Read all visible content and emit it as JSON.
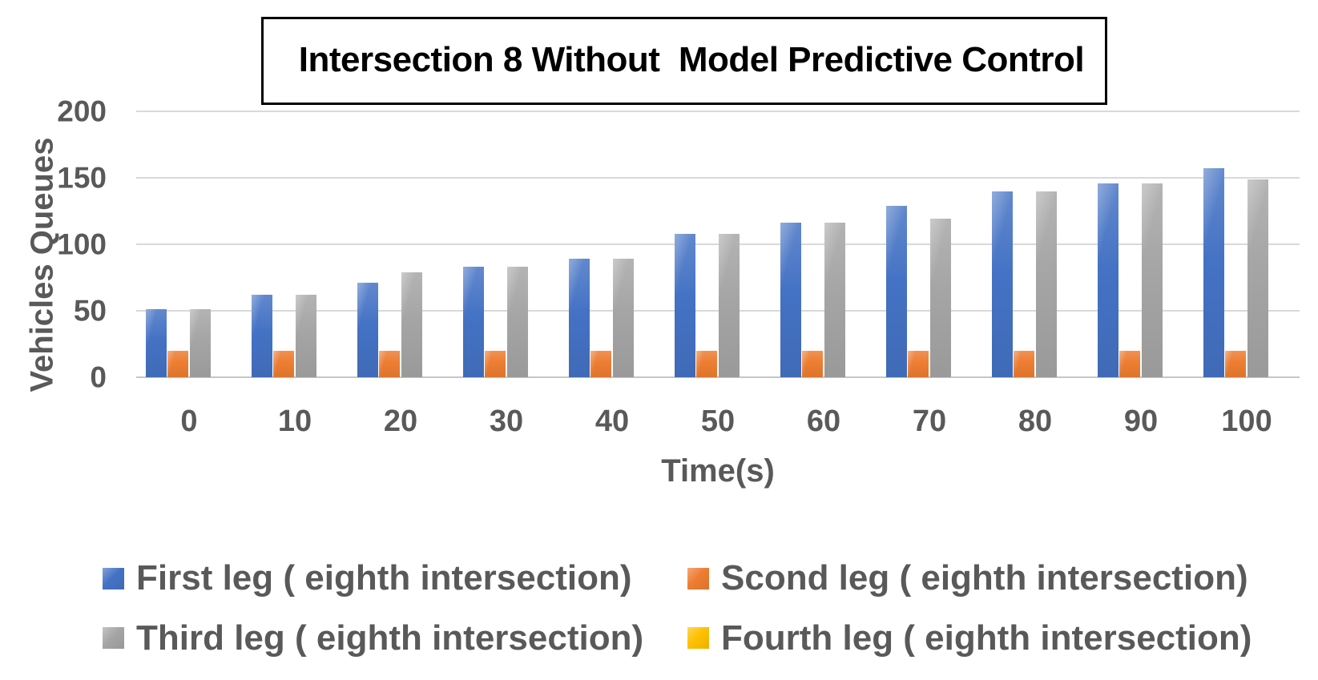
{
  "title": "Intersection 8 Without  Model Predictive Control",
  "chart_data": {
    "type": "bar",
    "title": "Intersection 8 Without  Model Predictive Control",
    "xlabel": "Time(s)",
    "ylabel": "Vehicles Queues",
    "categories": [
      "0",
      "10",
      "20",
      "30",
      "40",
      "50",
      "60",
      "70",
      "80",
      "90",
      "100"
    ],
    "ylim": [
      0,
      200
    ],
    "yticks": [
      0,
      50,
      100,
      150,
      200
    ],
    "grid": true,
    "legend_position": "bottom",
    "series": [
      {
        "name": "First leg ( eighth intersection)",
        "color": "#4472C4",
        "values": [
          51,
          62,
          71,
          83,
          89,
          108,
          116,
          129,
          140,
          146,
          157
        ]
      },
      {
        "name": "Scond leg ( eighth intersection)",
        "color": "#ED7D31",
        "values": [
          20,
          20,
          20,
          20,
          20,
          20,
          20,
          20,
          20,
          20,
          20
        ]
      },
      {
        "name": "Third leg ( eighth intersection)",
        "color": "#A5A5A5",
        "values": [
          51,
          62,
          79,
          83,
          89,
          108,
          116,
          119,
          140,
          146,
          149
        ]
      },
      {
        "name": "Fourth leg ( eighth intersection)",
        "color": "#FFC000",
        "values": [
          0,
          0,
          0,
          0,
          0,
          0,
          0,
          0,
          0,
          0,
          0
        ]
      }
    ],
    "colors": {
      "gridline": "#D9D9D9",
      "axis_line": "#C6C6C6",
      "axis_text": "#595959",
      "title_text": "#000000"
    }
  }
}
